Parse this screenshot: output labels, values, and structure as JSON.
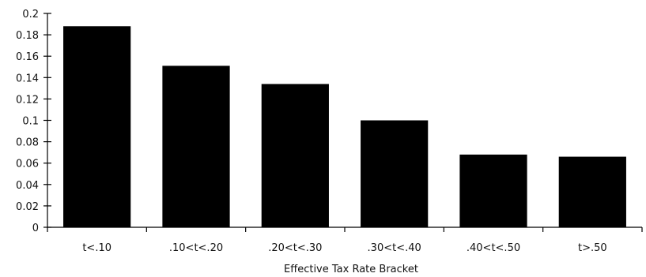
{
  "chart_data": {
    "type": "bar",
    "categories": [
      "t<.10",
      ".10<t<.20",
      ".20<t<.30",
      ".30<t<.40",
      ".40<t<.50",
      "t>.50"
    ],
    "values": [
      0.188,
      0.151,
      0.134,
      0.1,
      0.068,
      0.066
    ],
    "title": "",
    "xlabel": "Effective Tax Rate Bracket",
    "ylabel": "",
    "ylim": [
      0,
      0.2
    ],
    "yticks": [
      "0",
      "0.02",
      "0.04",
      "0.06",
      "0.08",
      "0.1",
      "0.12",
      "0.14",
      "0.16",
      "0.18",
      "0.2"
    ],
    "grid": false,
    "bar_color": "#000000"
  }
}
